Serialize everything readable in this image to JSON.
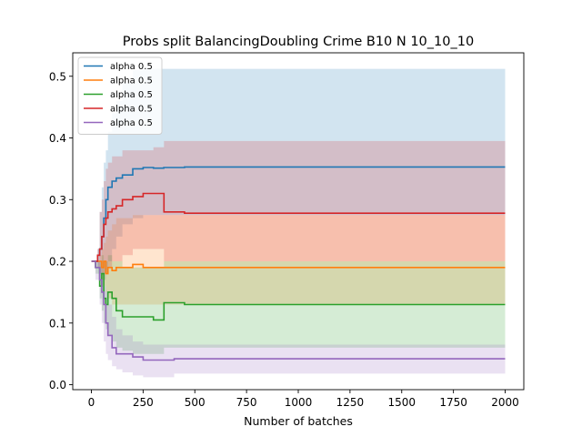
{
  "chart_data": {
    "type": "line",
    "title": "Probs split BalancingDoubling Crime B10 N 10_10_10",
    "xlabel": "Number of batches",
    "ylabel": "",
    "xlim": [
      -90,
      2090
    ],
    "ylim": [
      -0.008,
      0.538
    ],
    "x_ticks": [
      0,
      250,
      500,
      750,
      1000,
      1250,
      1500,
      1750,
      2000
    ],
    "y_ticks": [
      0.0,
      0.1,
      0.2,
      0.3,
      0.4,
      0.5
    ],
    "legend_position": "top-left",
    "grid": false,
    "series": [
      {
        "name": "alpha 0.5",
        "color": "#1f77b4",
        "x": [
          0,
          20,
          30,
          40,
          50,
          60,
          70,
          80,
          100,
          120,
          150,
          200,
          250,
          300,
          350,
          400,
          450,
          500,
          1000,
          2000
        ],
        "y": [
          0.2,
          0.2,
          0.21,
          0.22,
          0.24,
          0.27,
          0.3,
          0.32,
          0.33,
          0.335,
          0.34,
          0.35,
          0.352,
          0.351,
          0.352,
          0.352,
          0.353,
          0.353,
          0.353,
          0.353
        ],
        "lower": [
          0.2,
          0.2,
          0.19,
          0.18,
          0.18,
          0.17,
          0.18,
          0.2,
          0.22,
          0.24,
          0.26,
          0.27,
          0.275,
          0.275,
          0.275,
          0.275,
          0.275,
          0.275,
          0.275,
          0.275
        ],
        "upper": [
          0.2,
          0.2,
          0.22,
          0.28,
          0.32,
          0.36,
          0.38,
          0.41,
          0.44,
          0.46,
          0.49,
          0.51,
          0.512,
          0.512,
          0.512,
          0.512,
          0.512,
          0.512,
          0.512,
          0.512
        ]
      },
      {
        "name": "alpha 0.5",
        "color": "#ff7f0e",
        "x": [
          0,
          20,
          40,
          50,
          60,
          70,
          80,
          100,
          120,
          150,
          200,
          250,
          300,
          350,
          400,
          450,
          500,
          1000,
          2000
        ],
        "y": [
          0.2,
          0.2,
          0.2,
          0.19,
          0.2,
          0.18,
          0.19,
          0.185,
          0.19,
          0.19,
          0.195,
          0.19,
          0.19,
          0.19,
          0.19,
          0.19,
          0.19,
          0.19,
          0.19
        ],
        "lower": [
          0.2,
          0.2,
          0.19,
          0.17,
          0.16,
          0.15,
          0.14,
          0.13,
          0.13,
          0.13,
          0.13,
          0.13,
          0.13,
          0.13,
          0.13,
          0.13,
          0.13,
          0.13,
          0.13
        ],
        "upper": [
          0.2,
          0.2,
          0.21,
          0.22,
          0.23,
          0.24,
          0.25,
          0.26,
          0.27,
          0.27,
          0.275,
          0.275,
          0.275,
          0.275,
          0.275,
          0.275,
          0.275,
          0.275,
          0.275
        ]
      },
      {
        "name": "alpha 0.5",
        "color": "#2ca02c",
        "x": [
          0,
          20,
          40,
          50,
          60,
          70,
          80,
          100,
          120,
          150,
          200,
          250,
          300,
          349,
          351,
          400,
          450,
          500,
          1000,
          2000
        ],
        "y": [
          0.2,
          0.19,
          0.16,
          0.18,
          0.14,
          0.13,
          0.15,
          0.14,
          0.12,
          0.11,
          0.11,
          0.11,
          0.105,
          0.105,
          0.133,
          0.133,
          0.13,
          0.13,
          0.13,
          0.13
        ],
        "lower": [
          0.2,
          0.18,
          0.14,
          0.12,
          0.1,
          0.09,
          0.08,
          0.07,
          0.06,
          0.055,
          0.05,
          0.05,
          0.05,
          0.05,
          0.06,
          0.06,
          0.06,
          0.06,
          0.06,
          0.06
        ],
        "upper": [
          0.2,
          0.2,
          0.2,
          0.21,
          0.2,
          0.2,
          0.21,
          0.2,
          0.2,
          0.19,
          0.19,
          0.19,
          0.19,
          0.19,
          0.2,
          0.2,
          0.2,
          0.2,
          0.2,
          0.2
        ]
      },
      {
        "name": "alpha 0.5",
        "color": "#d62728",
        "x": [
          0,
          20,
          30,
          40,
          50,
          60,
          70,
          80,
          100,
          120,
          150,
          200,
          250,
          300,
          349,
          351,
          400,
          450,
          500,
          1000,
          2000
        ],
        "y": [
          0.2,
          0.2,
          0.21,
          0.22,
          0.24,
          0.26,
          0.27,
          0.28,
          0.285,
          0.29,
          0.3,
          0.305,
          0.31,
          0.31,
          0.31,
          0.28,
          0.28,
          0.278,
          0.278,
          0.278,
          0.278
        ],
        "lower": [
          0.2,
          0.2,
          0.19,
          0.18,
          0.18,
          0.18,
          0.18,
          0.19,
          0.2,
          0.2,
          0.21,
          0.22,
          0.22,
          0.22,
          0.22,
          0.2,
          0.2,
          0.2,
          0.2,
          0.2,
          0.2
        ],
        "upper": [
          0.2,
          0.2,
          0.22,
          0.28,
          0.3,
          0.33,
          0.35,
          0.36,
          0.37,
          0.37,
          0.38,
          0.38,
          0.38,
          0.385,
          0.385,
          0.395,
          0.395,
          0.395,
          0.395,
          0.395,
          0.395
        ]
      },
      {
        "name": "alpha 0.5",
        "color": "#9467bd",
        "x": [
          0,
          20,
          40,
          50,
          60,
          70,
          80,
          100,
          120,
          150,
          200,
          250,
          300,
          350,
          400,
          450,
          500,
          1000,
          2000
        ],
        "y": [
          0.2,
          0.19,
          0.17,
          0.15,
          0.13,
          0.1,
          0.08,
          0.06,
          0.05,
          0.05,
          0.045,
          0.04,
          0.04,
          0.04,
          0.042,
          0.042,
          0.042,
          0.042,
          0.042
        ],
        "lower": [
          0.2,
          0.17,
          0.13,
          0.1,
          0.07,
          0.05,
          0.04,
          0.03,
          0.025,
          0.02,
          0.015,
          0.012,
          0.012,
          0.012,
          0.018,
          0.018,
          0.018,
          0.018,
          0.018
        ],
        "upper": [
          0.2,
          0.2,
          0.19,
          0.18,
          0.16,
          0.15,
          0.13,
          0.11,
          0.09,
          0.08,
          0.07,
          0.065,
          0.065,
          0.065,
          0.065,
          0.065,
          0.065,
          0.065,
          0.065
        ]
      }
    ]
  }
}
